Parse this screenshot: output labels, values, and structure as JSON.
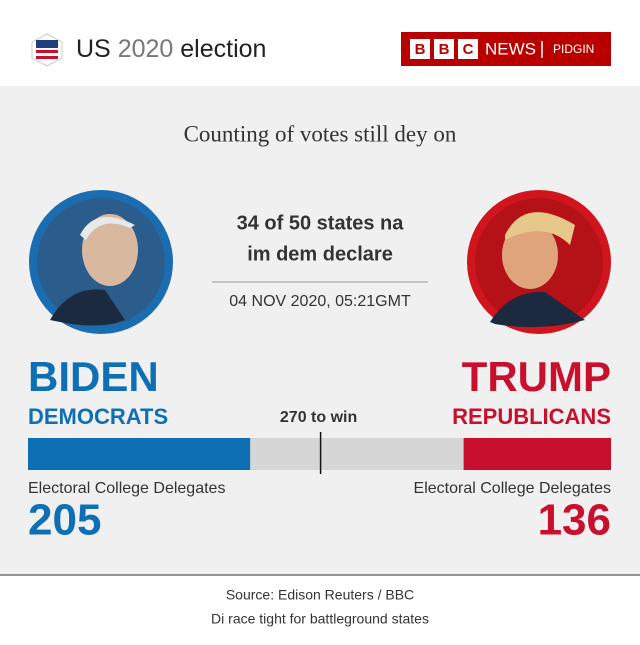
{
  "header": {
    "title_prefix": "US",
    "title_year": "2020",
    "title_suffix": "election",
    "brand_letters": [
      "B",
      "B",
      "C"
    ],
    "brand_news": "NEWS",
    "brand_sub": "PIDGIN"
  },
  "headline": "Counting of votes still dey on",
  "states_text": [
    "34 of 50 states na",
    "im dem declare"
  ],
  "timestamp": "04 NOV 2020, 05:21GMT",
  "chart_data": {
    "type": "bar",
    "xlim": [
      0,
      538
    ],
    "threshold": {
      "value": 270,
      "label": "270 to win"
    },
    "series": [
      {
        "name": "BIDEN",
        "party": "DEMOCRATS",
        "label": "Electoral College Delegates",
        "color": "#0f6fb4",
        "values": [
          205
        ]
      },
      {
        "name": "TRUMP",
        "party": "REPUBLICANS",
        "label": "Electoral College Delegates",
        "color": "#c8102e",
        "values": [
          136
        ]
      }
    ]
  },
  "footer": {
    "source": "Source: Edison Reuters / BBC",
    "note": "Di race tight for battleground states"
  }
}
